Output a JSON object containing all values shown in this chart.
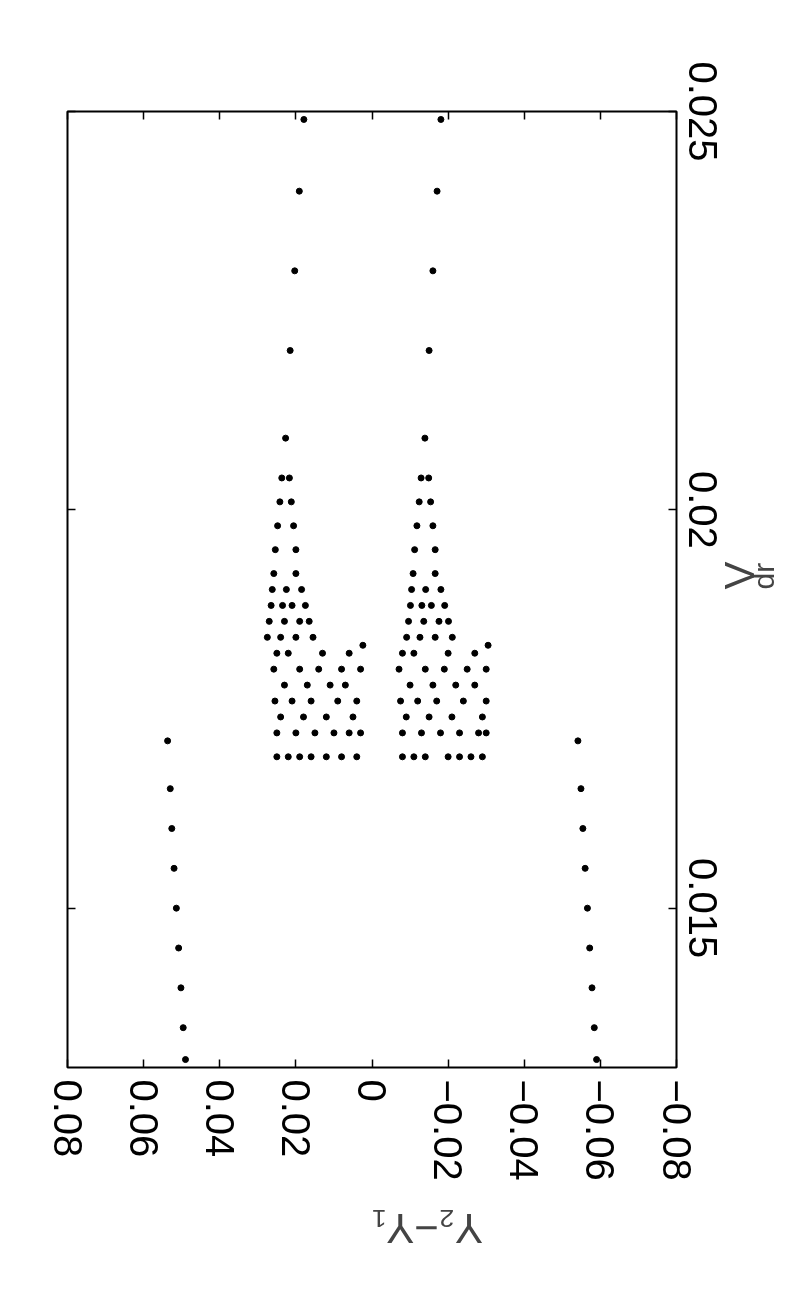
{
  "chart_data": {
    "type": "scatter",
    "xlabel": "Y₂−Y₁",
    "ylabel": "V$_{dr}$",
    "xlim": [
      0.08,
      -0.08
    ],
    "xticks": [
      0.08,
      0.06,
      0.04,
      0.02,
      0,
      {
        "value": -0.02,
        "label": "−0.02"
      },
      {
        "value": -0.04,
        "label": "−0.04"
      },
      {
        "value": -0.06,
        "label": "−0.06"
      },
      {
        "value": -0.08,
        "label": "−0.08"
      }
    ],
    "ylim": [
      0.013,
      0.025
    ],
    "yticks": [
      0.015,
      0.02,
      0.025
    ],
    "grid": false,
    "marker": "circle",
    "series": [
      {
        "color": "#000000",
        "values": [
          0.0131,
          0.0135,
          0.014,
          0.0145,
          0.015,
          0.0155,
          0.016,
          0.0165,
          0.0171,
          0.0131,
          0.0135,
          0.014,
          0.0145,
          0.015,
          0.0155,
          0.016,
          0.0165,
          0.0171
        ],
        "x": [
          0.049,
          0.0496,
          0.0502,
          0.0508,
          0.0514,
          0.052,
          0.0526,
          0.053,
          0.0537,
          -0.059,
          -0.0584,
          -0.0578,
          -0.0572,
          -0.0566,
          -0.056,
          -0.0554,
          -0.0549,
          -0.0541
        ]
      },
      {
        "color": "#000000",
        "values": [
          0.0169,
          0.0169,
          0.0169,
          0.0169,
          0.0169,
          0.0169,
          0.0169,
          0.0169,
          0.0169,
          0.0169,
          0.0169,
          0.0169,
          0.0169,
          0.0169
        ],
        "x": [
          0.025,
          0.022,
          0.019,
          0.016,
          0.012,
          0.008,
          0.004,
          -0.008,
          -0.011,
          -0.014,
          -0.02,
          -0.023,
          -0.026,
          -0.029
        ]
      },
      {
        "color": "#000000",
        "values": [
          0.0172,
          0.0172,
          0.0172,
          0.0172,
          0.0172,
          0.0172,
          0.0174,
          0.0174,
          0.0174,
          0.0174,
          0.0176,
          0.0176,
          0.0176,
          0.0176,
          0.0176,
          0.0178,
          0.0178,
          0.0178,
          0.0178,
          0.018,
          0.018,
          0.018,
          0.018,
          0.018,
          0.0182,
          0.0182,
          0.0182,
          0.0182,
          0.0183
        ],
        "x": [
          0.025,
          0.02,
          0.015,
          0.01,
          0.006,
          0.003,
          0.024,
          0.018,
          0.012,
          0.005,
          0.0255,
          0.021,
          0.016,
          0.009,
          0.004,
          0.023,
          0.017,
          0.011,
          0.007,
          0.0258,
          0.019,
          0.014,
          0.008,
          0.003,
          0.025,
          0.022,
          0.013,
          0.006,
          0.0024
        ]
      },
      {
        "color": "#000000",
        "values": [
          0.0172,
          0.0172,
          0.0172,
          0.0172,
          0.0172,
          0.0172,
          0.0174,
          0.0174,
          0.0174,
          0.0174,
          0.0176,
          0.0176,
          0.0176,
          0.0176,
          0.0176,
          0.0178,
          0.0178,
          0.0178,
          0.0178,
          0.018,
          0.018,
          0.018,
          0.018,
          0.018,
          0.0182,
          0.0182,
          0.0182,
          0.0182,
          0.0183
        ],
        "x": [
          -0.008,
          -0.013,
          -0.018,
          -0.023,
          -0.028,
          -0.03,
          -0.009,
          -0.015,
          -0.021,
          -0.029,
          -0.0075,
          -0.012,
          -0.017,
          -0.024,
          -0.03,
          -0.01,
          -0.016,
          -0.022,
          -0.027,
          -0.0071,
          -0.014,
          -0.019,
          -0.025,
          -0.03,
          -0.008,
          -0.011,
          -0.02,
          -0.027,
          -0.0305
        ]
      },
      {
        "color": "#000000",
        "values": [
          0.0184,
          0.0184,
          0.0184,
          0.0184,
          0.0186,
          0.0186,
          0.0186,
          0.0186,
          0.0188,
          0.0188,
          0.0188,
          0.0188,
          0.019,
          0.019,
          0.019,
          0.0192,
          0.0192,
          0.0184,
          0.0184,
          0.0184,
          0.0184,
          0.0186,
          0.0186,
          0.0186,
          0.0186,
          0.0188,
          0.0188,
          0.0188,
          0.0188,
          0.019,
          0.019,
          0.019,
          0.0192,
          0.0192
        ],
        "x": [
          0.0275,
          0.024,
          0.02,
          0.0155,
          0.027,
          0.023,
          0.019,
          0.0165,
          0.0265,
          0.0235,
          0.021,
          0.0175,
          0.0262,
          0.0225,
          0.0185,
          0.0258,
          0.02,
          -0.0091,
          -0.0126,
          -0.0166,
          -0.0211,
          -0.0096,
          -0.0136,
          -0.0176,
          -0.0201,
          -0.0101,
          -0.0131,
          -0.0156,
          -0.0191,
          -0.0104,
          -0.0141,
          -0.0181,
          -0.0108,
          -0.0166
        ]
      },
      {
        "color": "#000000",
        "values": [
          0.0195,
          0.0198,
          0.0201,
          0.0204,
          0.0209,
          0.0195,
          0.0198,
          0.0201,
          0.0204,
          0.0195,
          0.0198,
          0.0201,
          0.0204,
          0.0209,
          0.0195,
          0.0198,
          0.0201,
          0.0204,
          0.022,
          0.023,
          0.024,
          0.0249,
          0.022,
          0.023,
          0.024,
          0.0249
        ],
        "x": [
          0.0254,
          0.0248,
          0.0242,
          0.0237,
          0.0227,
          0.02,
          0.0206,
          0.0212,
          0.0217,
          -0.0112,
          -0.0118,
          -0.0124,
          -0.0129,
          -0.0139,
          -0.0166,
          -0.016,
          -0.0154,
          -0.0149,
          0.0215,
          0.0203,
          0.0191,
          0.0179,
          -0.015,
          -0.016,
          -0.0171,
          -0.0181
        ]
      }
    ]
  }
}
